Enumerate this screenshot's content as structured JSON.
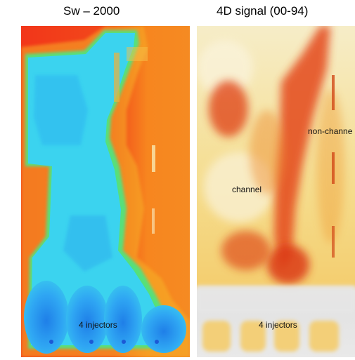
{
  "panels": [
    {
      "title": "Sw – 2000",
      "labels": {
        "injectors": "4 injectors"
      }
    },
    {
      "title": "4D signal (00-94)",
      "labels": {
        "channel": "channel",
        "non_channel": "non-channe",
        "injectors": "4 injectors"
      }
    }
  ],
  "colors": {
    "water_blue": "#2aa7f0",
    "cyan": "#3fd6ef",
    "red": "#f03a1a",
    "orange": "#f7871f",
    "signal_strong": "#de3b1a",
    "signal_weak": "#f5e3a0",
    "grey_band": "#e6e6e6"
  }
}
